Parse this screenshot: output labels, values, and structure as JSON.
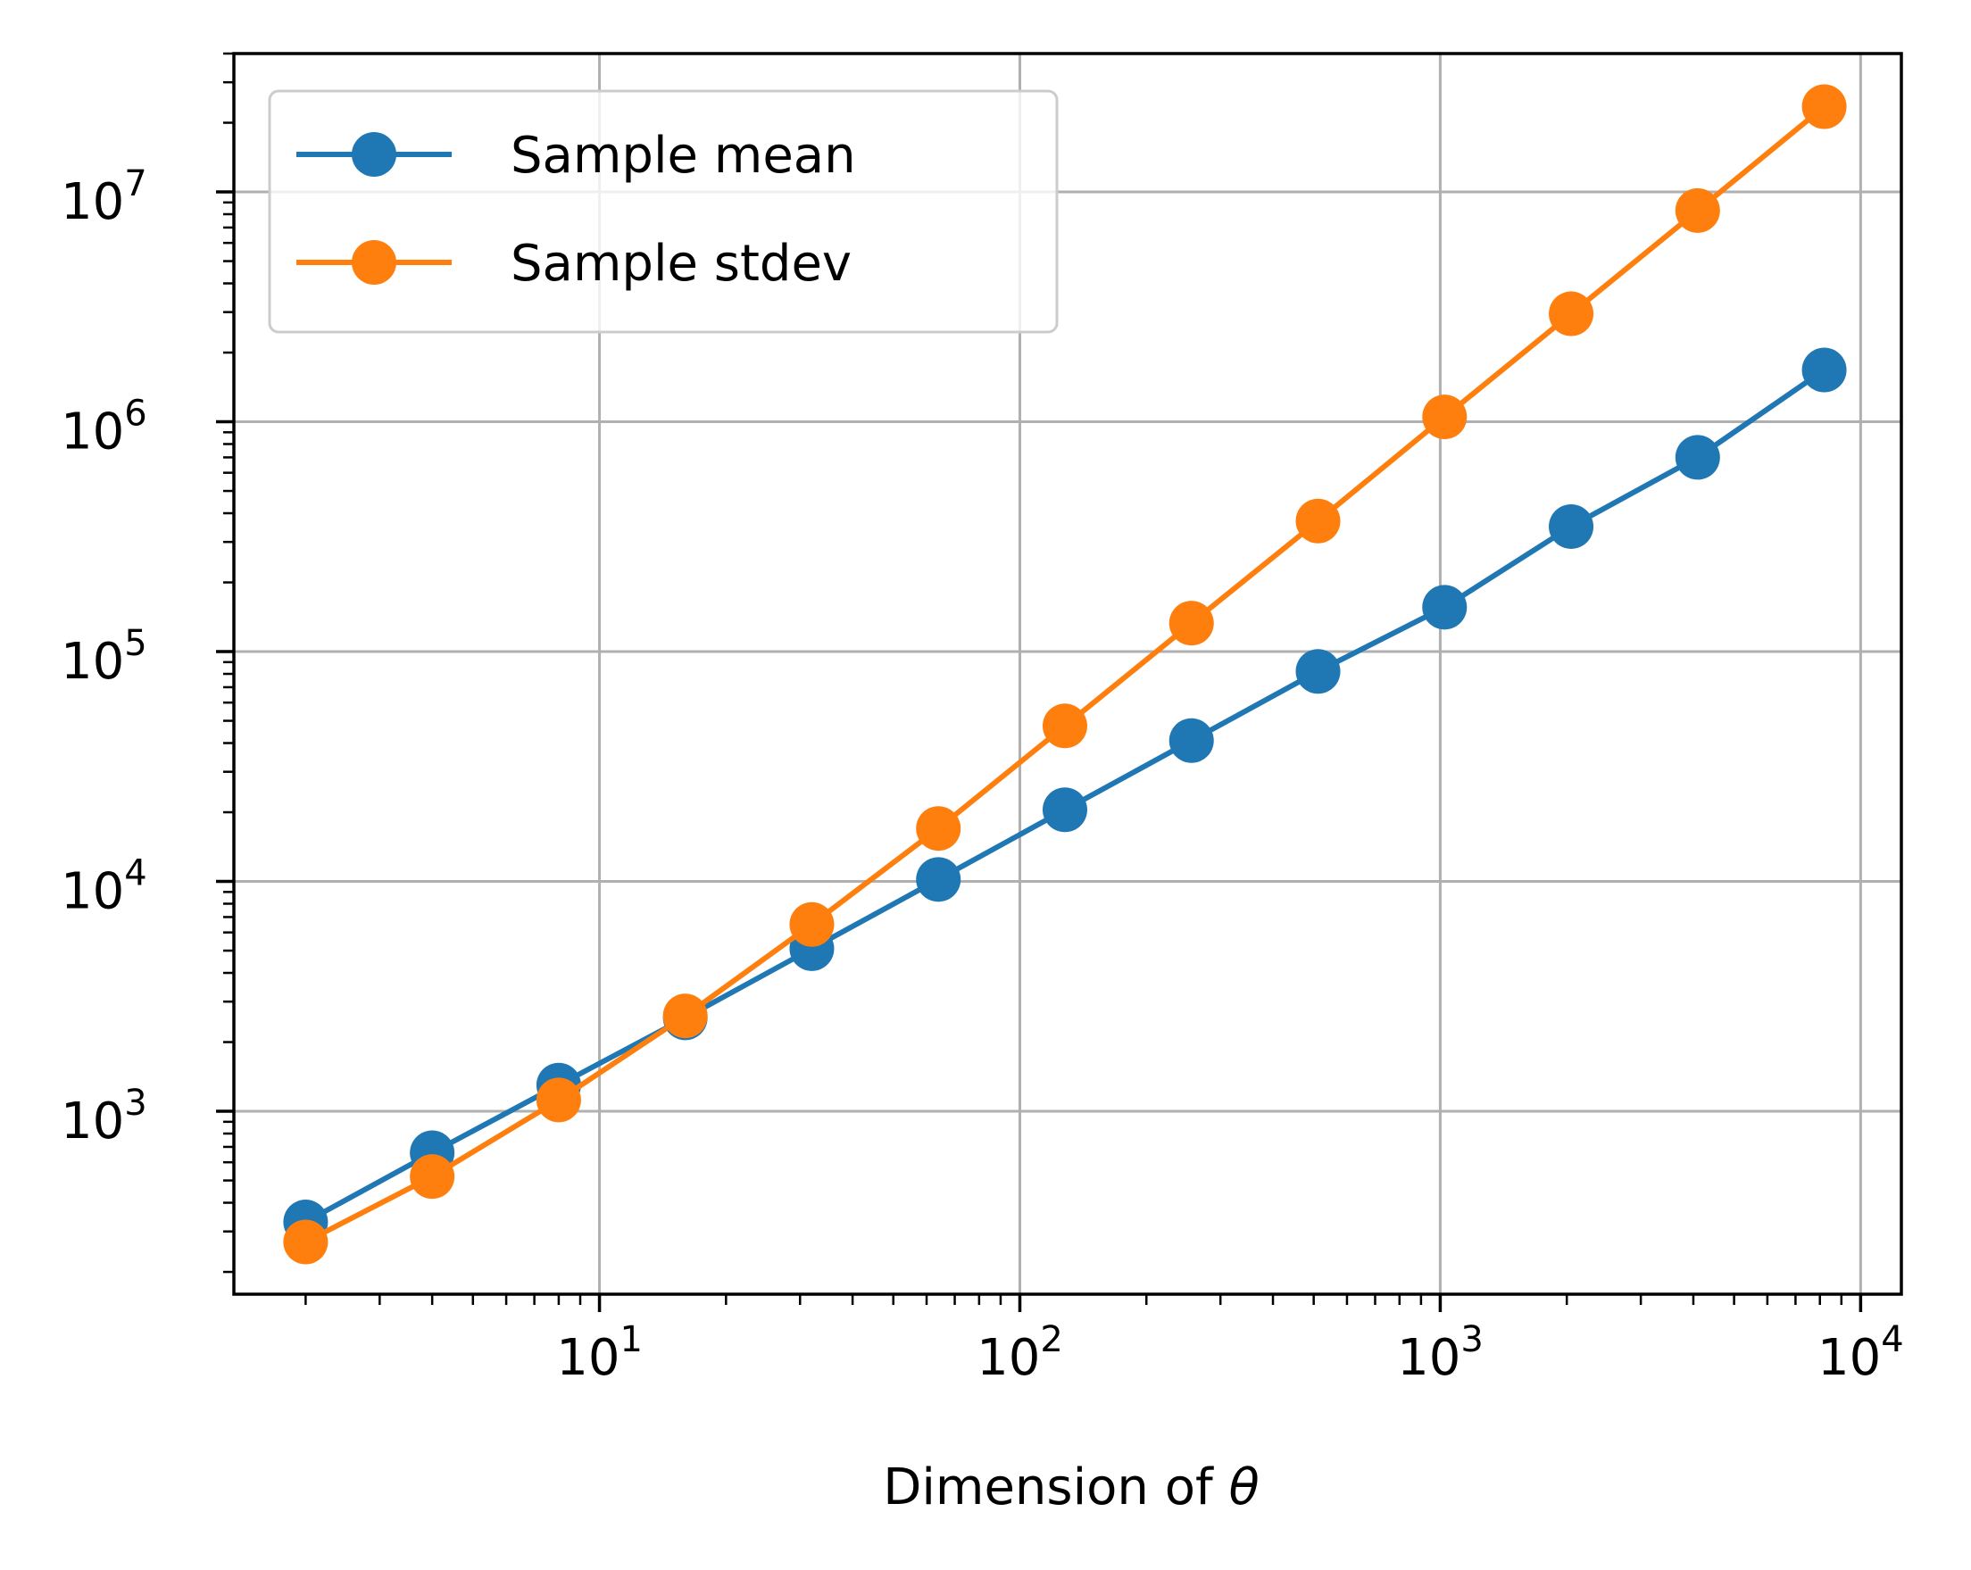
{
  "chart_data": {
    "type": "line",
    "title": "",
    "xlabel": "Dimension of",
    "xlabel_symbol": "θ",
    "ylabel": "",
    "xscale": "log",
    "yscale": "log",
    "xlim": [
      1.35,
      12500
    ],
    "ylim": [
      160,
      40000000
    ],
    "grid": true,
    "legend": "upper-left",
    "x_ticks": [
      {
        "value": 10,
        "base": "10",
        "exp": "1"
      },
      {
        "value": 100,
        "base": "10",
        "exp": "2"
      },
      {
        "value": 1000,
        "base": "10",
        "exp": "3"
      },
      {
        "value": 10000,
        "base": "10",
        "exp": "4"
      }
    ],
    "y_ticks": [
      {
        "value": 1000,
        "base": "10",
        "exp": "3"
      },
      {
        "value": 10000,
        "base": "10",
        "exp": "4"
      },
      {
        "value": 100000,
        "base": "10",
        "exp": "5"
      },
      {
        "value": 1000000,
        "base": "10",
        "exp": "6"
      },
      {
        "value": 10000000,
        "base": "10",
        "exp": "7"
      }
    ],
    "x": [
      2,
      4,
      8,
      16,
      32,
      64,
      128,
      256,
      512,
      1024,
      2048,
      4096,
      8192
    ],
    "series": [
      {
        "name": "Sample mean",
        "color": "#1f77b4",
        "marker": "circle",
        "values": [
          330,
          660,
          1300,
          2550,
          5100,
          10200,
          20500,
          41000,
          82000,
          156000,
          350000,
          700000,
          1680000
        ]
      },
      {
        "name": "Sample stdev",
        "color": "#ff7f0e",
        "marker": "circle",
        "values": [
          270,
          520,
          1120,
          2600,
          6500,
          17000,
          47500,
          133000,
          370000,
          1050000,
          2950000,
          8300000,
          23500000
        ]
      }
    ]
  }
}
